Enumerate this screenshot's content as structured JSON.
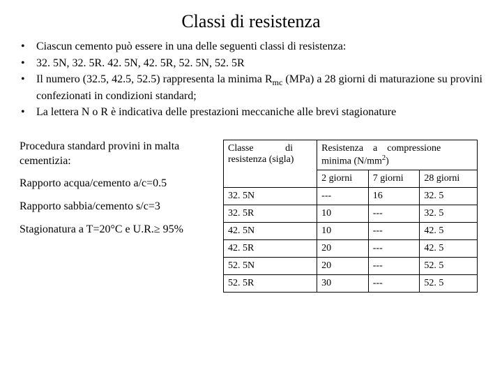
{
  "title": "Classi di resistenza",
  "bullets": [
    "Ciascun cemento può essere in una delle seguenti classi di resistenza:",
    "32. 5N, 32. 5R. 42. 5N, 42. 5R, 52. 5N, 52. 5R",
    "Il numero (32.5, 42.5, 52.5) rappresenta la minima R",
    " (MPa) a 28 giorni di maturazione su provini confezionati in condizioni standard;",
    "La lettera N o R è indicativa delle prestazioni meccaniche alle brevi stagionature"
  ],
  "rmc_sub": "mc",
  "left": {
    "p1": "Procedura standard provini in malta cementizia:",
    "p2": "Rapporto acqua/cemento a/c=0.5",
    "p3": "Rapporto sabbia/cemento s/c=3",
    "p4": "Stagionatura a T=20°C e U.R.≥ 95%"
  },
  "table": {
    "h_classe_1": "Classe",
    "h_classe_2": "di",
    "h_classe_3": "resistenza (sigla)",
    "h_res_1": "Resistenza",
    "h_res_2": "a",
    "h_res_3": "compressione",
    "h_res_unit_1": "minima (N/mm",
    "h_res_unit_2": ")",
    "h_2g": "2 giorni",
    "h_7g": "7 giorni",
    "h_28g": "28 giorni",
    "rows": [
      {
        "sigla": "32. 5N",
        "g2": "---",
        "g7": "16",
        "g28": "32. 5"
      },
      {
        "sigla": "32. 5R",
        "g2": "10",
        "g7": "---",
        "g28": "32. 5"
      },
      {
        "sigla": "42. 5N",
        "g2": "10",
        "g7": "---",
        "g28": "42. 5"
      },
      {
        "sigla": "42. 5R",
        "g2": "20",
        "g7": "---",
        "g28": "42. 5"
      },
      {
        "sigla": "52. 5N",
        "g2": "20",
        "g7": "---",
        "g28": "52. 5"
      },
      {
        "sigla": "52. 5R",
        "g2": "30",
        "g7": "---",
        "g28": "52. 5"
      }
    ]
  }
}
